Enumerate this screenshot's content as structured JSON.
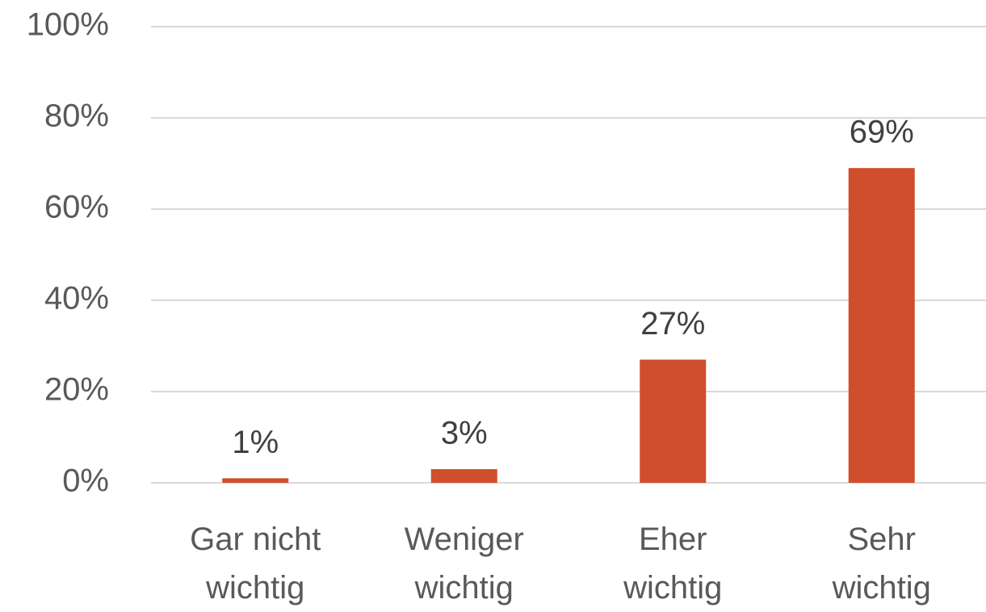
{
  "chart_data": {
    "type": "bar",
    "categories": [
      "Gar nicht wichtig",
      "Weniger wichtig",
      "Eher wichtig",
      "Sehr wichtig"
    ],
    "values": [
      1,
      3,
      27,
      69
    ],
    "value_labels": [
      "1%",
      "3%",
      "27%",
      "69%"
    ],
    "color": "#d04e2b",
    "ylim": [
      0,
      100
    ],
    "yticks": [
      {
        "value": 0,
        "label": "0%"
      },
      {
        "value": 20,
        "label": "20%"
      },
      {
        "value": 40,
        "label": "40%"
      },
      {
        "value": 60,
        "label": "60%"
      },
      {
        "value": 80,
        "label": "80%"
      },
      {
        "value": 100,
        "label": "100%"
      }
    ],
    "grid": true
  }
}
